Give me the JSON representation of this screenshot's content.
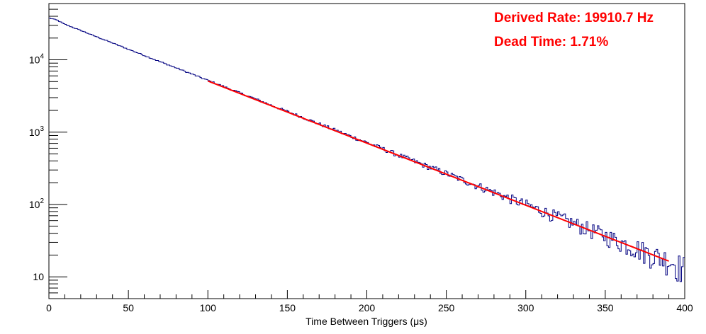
{
  "chart_data": {
    "type": "line",
    "title": "",
    "xlabel": "Time Between Triggers (μs)",
    "ylabel": "",
    "xlim": [
      0,
      400
    ],
    "ylim": [
      5,
      60000
    ],
    "yscale": "log",
    "grid": false,
    "x_ticks": [
      {
        "value": 0,
        "label": "0"
      },
      {
        "value": 50,
        "label": "50"
      },
      {
        "value": 100,
        "label": "100"
      },
      {
        "value": 150,
        "label": "150"
      },
      {
        "value": 200,
        "label": "200"
      },
      {
        "value": 250,
        "label": "250"
      },
      {
        "value": 300,
        "label": "300"
      },
      {
        "value": 350,
        "label": "350"
      },
      {
        "value": 400,
        "label": "400"
      }
    ],
    "y_ticks": [
      {
        "value": 10,
        "base": "10",
        "exp": ""
      },
      {
        "value": 100,
        "base": "10",
        "exp": "2"
      },
      {
        "value": 1000,
        "base": "10",
        "exp": "3"
      },
      {
        "value": 10000,
        "base": "10",
        "exp": "4"
      }
    ],
    "series": [
      {
        "kind": "histogram",
        "color": "#000080",
        "bin_width": 1,
        "x": [
          0,
          2,
          5,
          10,
          20,
          30,
          40,
          50,
          60,
          70,
          80,
          90,
          100,
          110,
          120,
          130,
          140,
          150,
          160,
          170,
          180,
          190,
          200,
          210,
          220,
          230,
          240,
          250,
          260,
          270,
          280,
          290,
          300,
          310,
          320,
          330,
          340,
          350,
          360,
          370,
          380,
          390,
          400
        ],
        "values": [
          38000,
          37000,
          35500,
          31000,
          25500,
          20800,
          17100,
          14000,
          11500,
          9400,
          7750,
          6350,
          5200,
          4280,
          3500,
          2880,
          2350,
          1930,
          1590,
          1300,
          1070,
          875,
          720,
          590,
          480,
          395,
          325,
          268,
          220,
          180,
          148,
          121,
          100,
          82,
          67,
          55,
          45,
          37,
          30,
          25,
          20,
          17,
          13
        ]
      },
      {
        "kind": "fit",
        "color": "#ff0000",
        "x": [
          100,
          390
        ],
        "values": [
          5100,
          16.5
        ]
      }
    ],
    "annotations": [
      {
        "text": "Derived Rate: 19910.7 Hz",
        "color": "#ff0000"
      },
      {
        "text": "Dead Time: 1.71%",
        "color": "#ff0000"
      }
    ]
  }
}
